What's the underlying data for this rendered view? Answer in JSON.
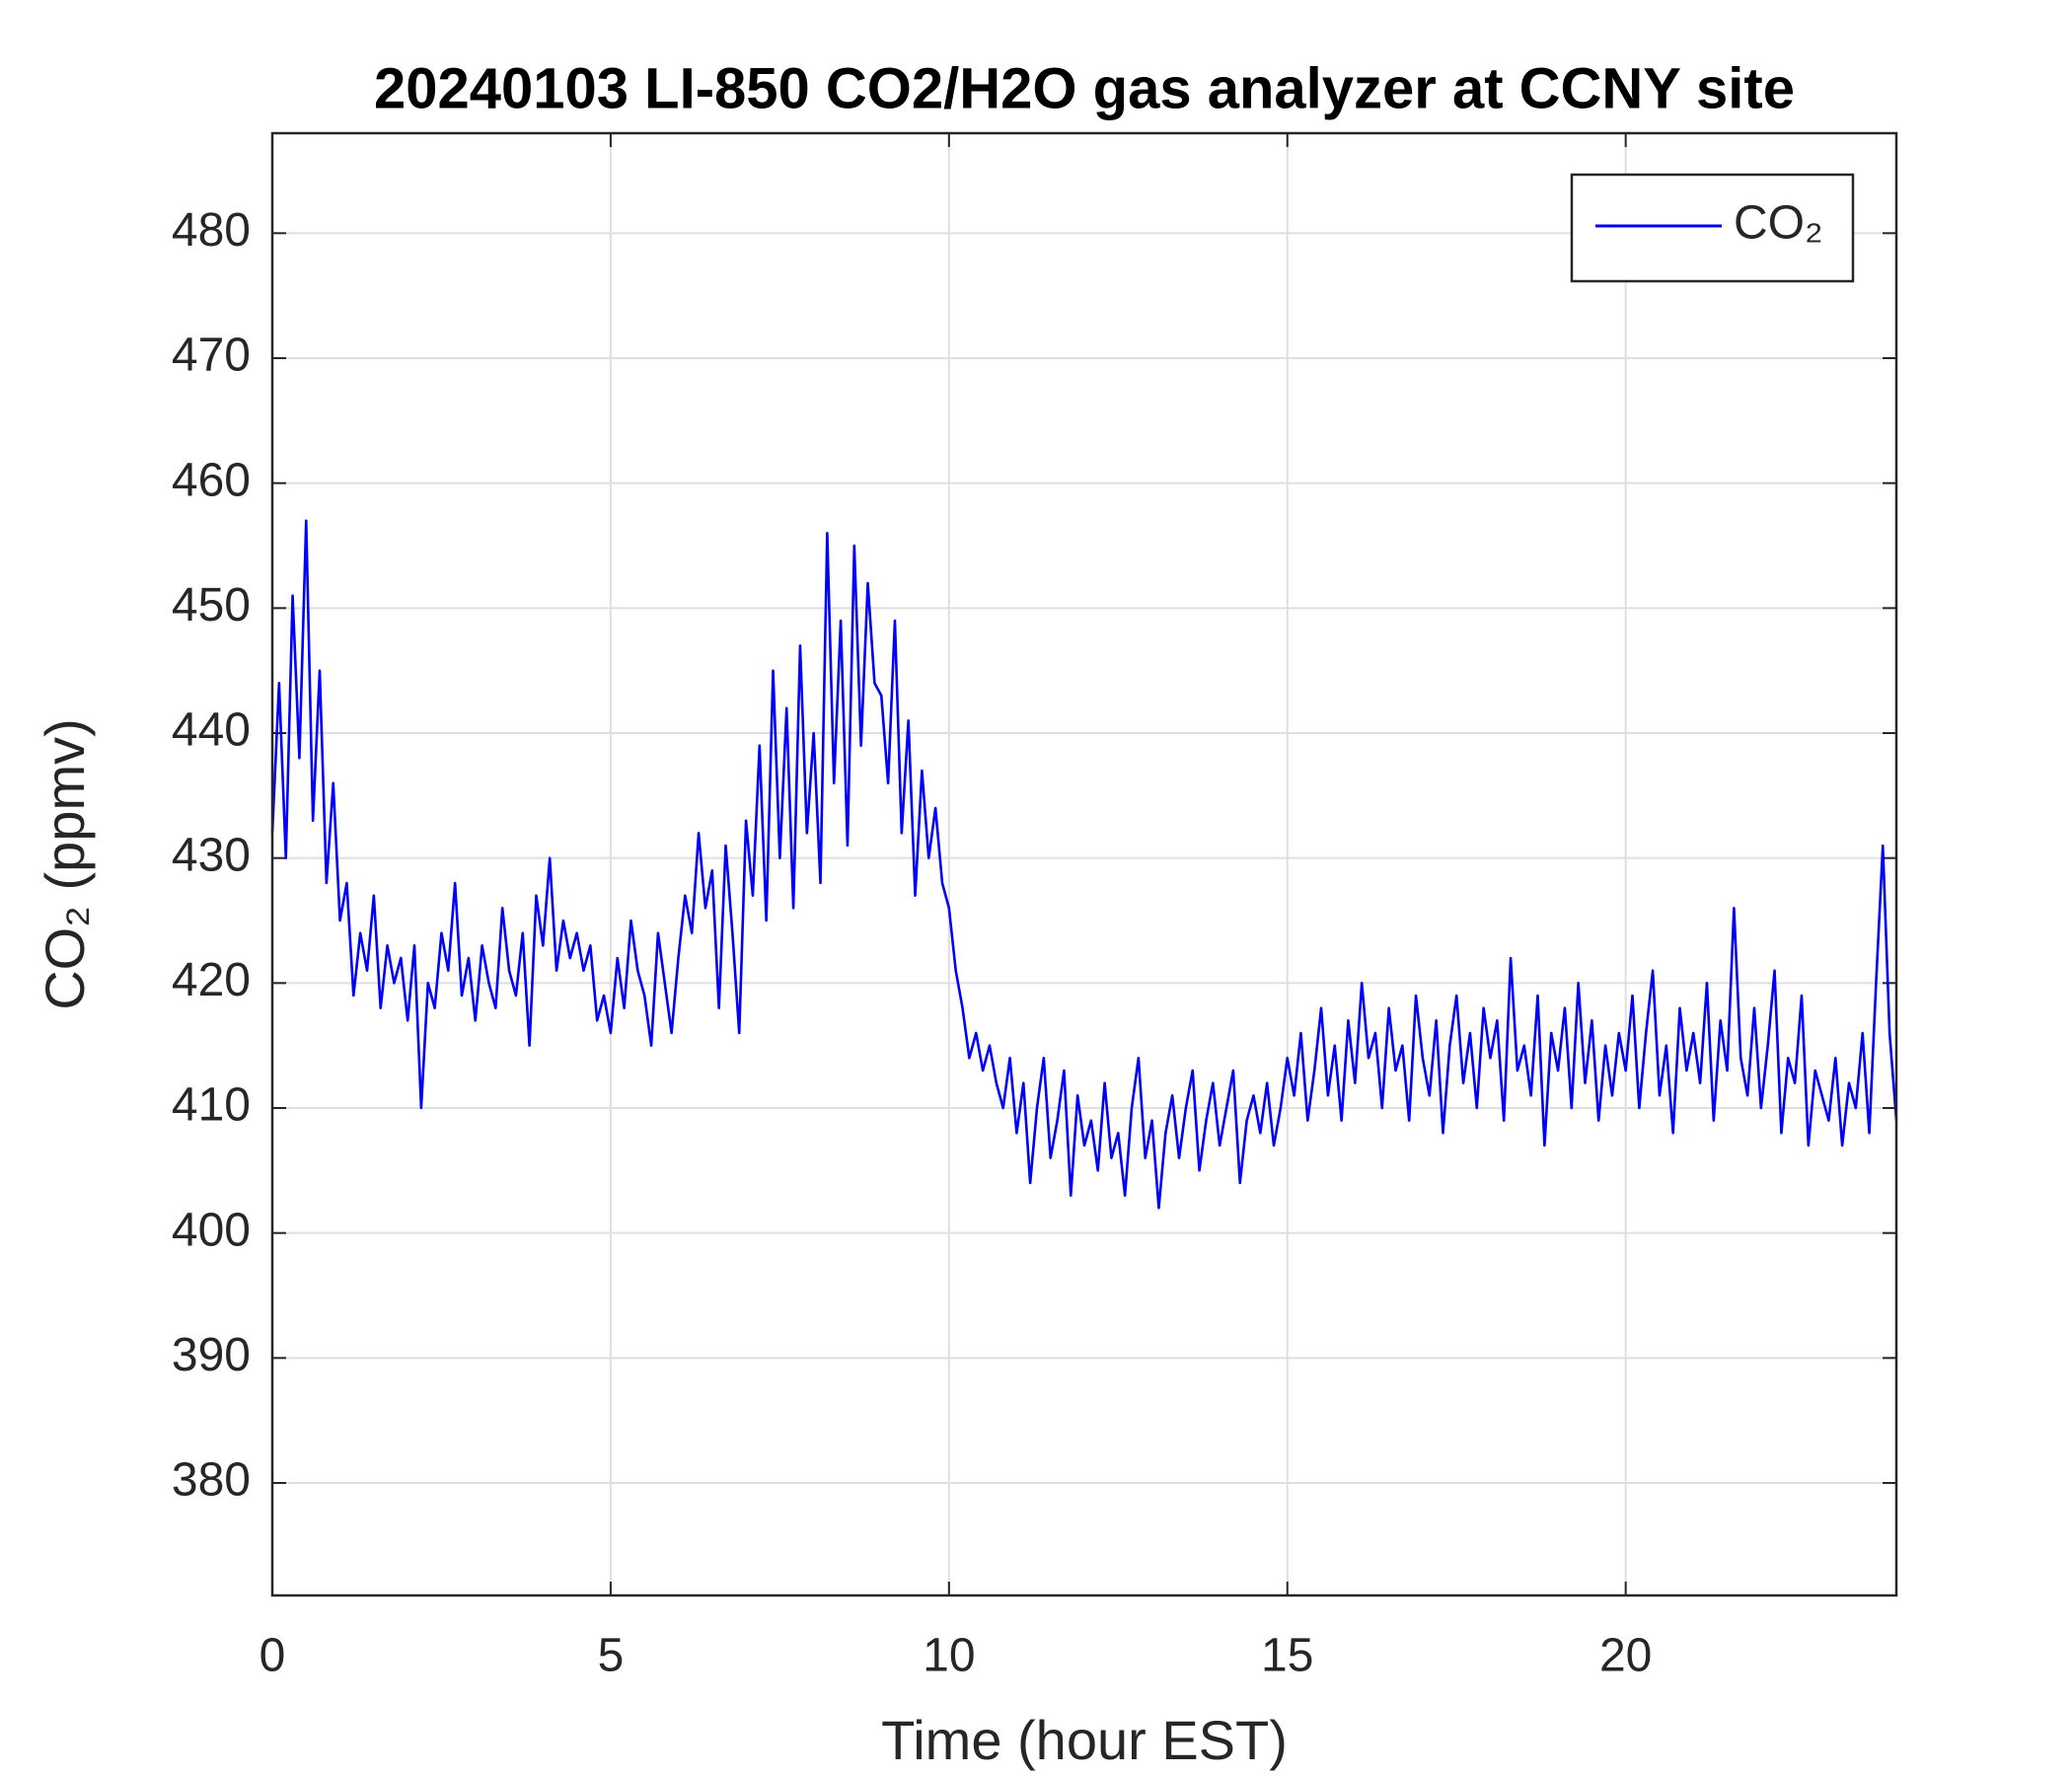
{
  "chart_data": {
    "type": "line",
    "title": "20240103 LI-850 CO2/H2O gas analyzer at CCNY site",
    "xlabel": "Time (hour EST)",
    "ylabel": "CO₂ (ppmv)",
    "xlim": [
      0,
      24
    ],
    "xticks": [
      0,
      5,
      10,
      15,
      20
    ],
    "ylim": [
      371,
      488
    ],
    "yticks": [
      380,
      390,
      400,
      410,
      420,
      430,
      440,
      450,
      460,
      470,
      480
    ],
    "grid": true,
    "legend": "upper right",
    "x": [
      0,
      0.1,
      0.2,
      0.3,
      0.4,
      0.5,
      0.6,
      0.7,
      0.8,
      0.9,
      1,
      1.1,
      1.2,
      1.3,
      1.4,
      1.5,
      1.6,
      1.7,
      1.8,
      1.9,
      2,
      2.1,
      2.2,
      2.3,
      2.4,
      2.5,
      2.6,
      2.7,
      2.8,
      2.9,
      3,
      3.1,
      3.2,
      3.3,
      3.4,
      3.5,
      3.6,
      3.7,
      3.8,
      3.9,
      4,
      4.1,
      4.2,
      4.3,
      4.4,
      4.5,
      4.6,
      4.7,
      4.8,
      4.9,
      5,
      5.1,
      5.2,
      5.3,
      5.4,
      5.5,
      5.6,
      5.7,
      5.8,
      5.9,
      6,
      6.1,
      6.2,
      6.3,
      6.4,
      6.5,
      6.6,
      6.7,
      6.8,
      6.9,
      7,
      7.1,
      7.2,
      7.3,
      7.4,
      7.5,
      7.6,
      7.7,
      7.8,
      7.9,
      8,
      8.1,
      8.2,
      8.3,
      8.4,
      8.5,
      8.6,
      8.7,
      8.8,
      8.9,
      9,
      9.1,
      9.2,
      9.3,
      9.4,
      9.5,
      9.6,
      9.7,
      9.8,
      9.9,
      10,
      10.1,
      10.2,
      10.3,
      10.4,
      10.5,
      10.6,
      10.7,
      10.8,
      10.9,
      11,
      11.1,
      11.2,
      11.3,
      11.4,
      11.5,
      11.6,
      11.7,
      11.8,
      11.9,
      12,
      12.1,
      12.2,
      12.3,
      12.4,
      12.5,
      12.6,
      12.7,
      12.8,
      12.9,
      13,
      13.1,
      13.2,
      13.3,
      13.4,
      13.5,
      13.6,
      13.7,
      13.8,
      13.9,
      14,
      14.1,
      14.2,
      14.3,
      14.4,
      14.5,
      14.6,
      14.7,
      14.8,
      14.9,
      15,
      15.1,
      15.2,
      15.3,
      15.4,
      15.5,
      15.6,
      15.7,
      15.8,
      15.9,
      16,
      16.1,
      16.2,
      16.3,
      16.4,
      16.5,
      16.6,
      16.7,
      16.8,
      16.9,
      17,
      17.1,
      17.2,
      17.3,
      17.4,
      17.5,
      17.6,
      17.7,
      17.8,
      17.9,
      18,
      18.1,
      18.2,
      18.3,
      18.4,
      18.5,
      18.6,
      18.7,
      18.8,
      18.9,
      19,
      19.1,
      19.2,
      19.3,
      19.4,
      19.5,
      19.6,
      19.7,
      19.8,
      19.9,
      20,
      20.1,
      20.2,
      20.3,
      20.4,
      20.5,
      20.6,
      20.7,
      20.8,
      20.9,
      21,
      21.1,
      21.2,
      21.3,
      21.4,
      21.5,
      21.6,
      21.7,
      21.8,
      21.9,
      22,
      22.1,
      22.2,
      22.3,
      22.4,
      22.5,
      22.6,
      22.7,
      22.8,
      22.9,
      23,
      23.1,
      23.2,
      23.3,
      23.4,
      23.5,
      23.6,
      23.7,
      23.8,
      23.9,
      24
    ],
    "series": [
      {
        "name": "CO₂",
        "color": "#0000ff",
        "values": [
          432,
          444,
          430,
          451,
          438,
          457,
          433,
          445,
          428,
          436,
          425,
          428,
          419,
          424,
          421,
          427,
          418,
          423,
          420,
          422,
          417,
          423,
          410,
          420,
          418,
          424,
          421,
          428,
          419,
          422,
          417,
          423,
          420,
          418,
          426,
          421,
          419,
          424,
          415,
          427,
          423,
          430,
          421,
          425,
          422,
          424,
          421,
          423,
          417,
          419,
          416,
          422,
          418,
          425,
          421,
          419,
          415,
          424,
          420,
          416,
          422,
          427,
          424,
          432,
          426,
          429,
          418,
          431,
          424,
          416,
          433,
          427,
          439,
          425,
          445,
          430,
          442,
          426,
          447,
          432,
          440,
          428,
          456,
          436,
          449,
          431,
          455,
          439,
          452,
          444,
          443,
          436,
          449,
          432,
          441,
          427,
          437,
          430,
          434,
          428,
          426,
          421,
          418,
          414,
          416,
          413,
          415,
          412,
          410,
          414,
          408,
          412,
          404,
          410,
          414,
          406,
          409,
          413,
          403,
          411,
          407,
          409,
          405,
          412,
          406,
          408,
          403,
          410,
          414,
          406,
          409,
          402,
          408,
          411,
          406,
          410,
          413,
          405,
          409,
          412,
          407,
          410,
          413,
          404,
          409,
          411,
          408,
          412,
          407,
          410,
          414,
          411,
          416,
          409,
          413,
          418,
          411,
          415,
          409,
          417,
          412,
          420,
          414,
          416,
          410,
          418,
          413,
          415,
          409,
          419,
          414,
          411,
          417,
          408,
          415,
          419,
          412,
          416,
          410,
          418,
          414,
          417,
          409,
          422,
          413,
          415,
          411,
          419,
          407,
          416,
          413,
          418,
          410,
          420,
          412,
          417,
          409,
          415,
          411,
          416,
          413,
          419,
          410,
          416,
          421,
          411,
          415,
          408,
          418,
          413,
          416,
          412,
          420,
          409,
          417,
          413,
          426,
          414,
          411,
          418,
          410,
          415,
          421,
          408,
          414,
          412,
          419,
          407,
          413,
          411,
          409,
          414,
          407,
          412,
          410,
          416,
          408,
          420,
          431,
          416,
          409
        ]
      }
    ]
  }
}
